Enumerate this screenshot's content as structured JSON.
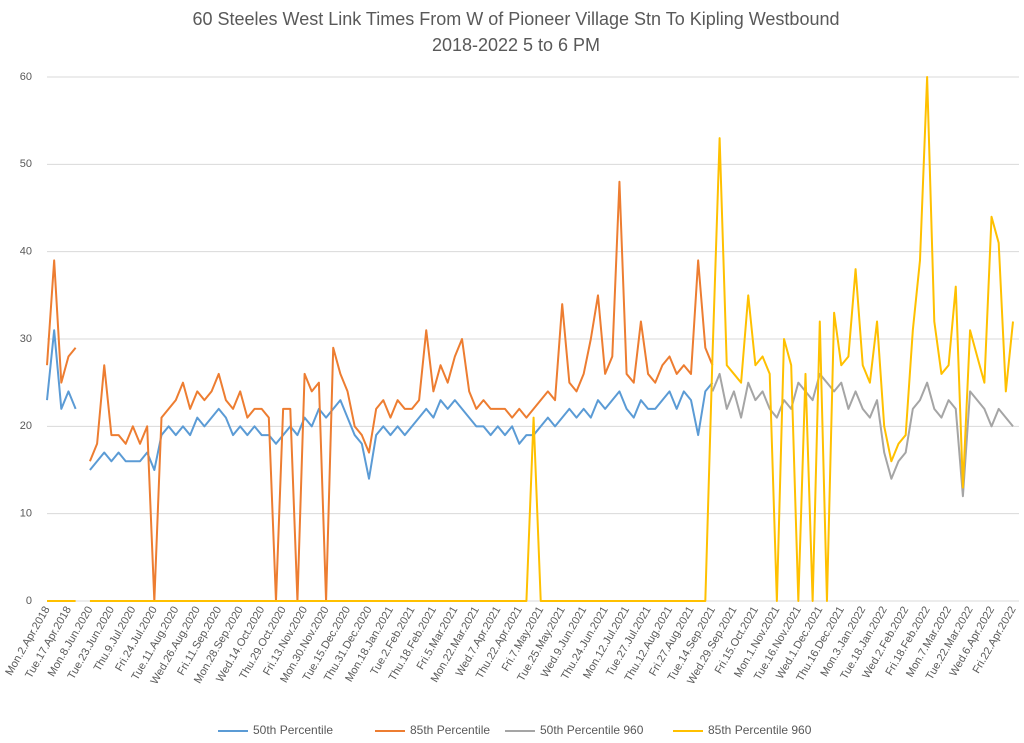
{
  "chart_data": {
    "type": "line",
    "title": "60 Steeles West Link Times From W of Pioneer Village Stn To Kipling Westbound",
    "subtitle": "2018-2022 5 to 6 PM",
    "ylim": [
      0,
      60
    ],
    "yticks": [
      0,
      10,
      20,
      30,
      40,
      50,
      60
    ],
    "grid": true,
    "legend": "bottom",
    "categories": [
      "Mon.2.Apr.2018",
      null,
      null,
      "Tue.17.Apr.2018",
      null,
      null,
      "Mon.8.Jun.2020",
      null,
      null,
      "Tue.23.Jun.2020",
      null,
      null,
      "Thu.9.Jul.2020",
      null,
      null,
      "Fri.24.Jul.2020",
      null,
      null,
      "Tue.11.Aug.2020",
      null,
      null,
      "Wed.26.Aug.2020",
      null,
      null,
      "Fri.11.Sep.2020",
      null,
      null,
      "Mon.28.Sep.2020",
      null,
      null,
      "Wed.14.Oct.2020",
      null,
      null,
      "Thu.29.Oct.2020",
      null,
      null,
      "Fri.13.Nov.2020",
      null,
      null,
      "Mon.30.Nov.2020",
      null,
      null,
      "Tue.15.Dec.2020",
      null,
      null,
      "Thu.31.Dec.2020",
      null,
      null,
      "Mon.18.Jan.2021",
      null,
      null,
      "Tue.2.Feb.2021",
      null,
      null,
      "Thu.18.Feb.2021",
      null,
      null,
      "Fri.5.Mar.2021",
      null,
      null,
      "Mon.22.Mar.2021",
      null,
      null,
      "Wed.7.Apr.2021",
      null,
      null,
      "Thu.22.Apr.2021",
      null,
      null,
      "Fri.7.May.2021",
      null,
      null,
      "Tue.25.May.2021",
      null,
      null,
      "Wed.9.Jun.2021",
      null,
      null,
      "Thu.24.Jun.2021",
      null,
      null,
      "Mon.12.Jul.2021",
      null,
      null,
      "Tue.27.Jul.2021",
      null,
      null,
      "Thu.12.Aug.2021",
      null,
      null,
      "Fri.27.Aug.2021",
      null,
      null,
      "Tue.14.Sep.2021",
      null,
      null,
      "Wed.29.Sep.2021",
      null,
      null,
      "Fri.15.Oct.2021",
      null,
      null,
      "Mon.1.Nov.2021",
      null,
      null,
      "Tue.16.Nov.2021",
      null,
      null,
      "Wed.1.Dec.2021",
      null,
      null,
      "Thu.16.Dec.2021",
      null,
      null,
      "Mon.3.Jan.2022",
      null,
      null,
      "Tue.18.Jan.2022",
      null,
      null,
      "Wed.2.Feb.2022",
      null,
      null,
      "Fri.18.Feb.2022",
      null,
      null,
      "Mon.7.Mar.2022",
      null,
      null,
      "Tue.22.Mar.2022",
      null,
      null,
      "Wed.6.Apr.2022",
      null,
      null,
      "Fri.22.Apr.2022"
    ],
    "series": [
      {
        "name": "50th Percentile",
        "color": "#5b9bd5",
        "values": [
          23,
          31,
          22,
          24,
          22,
          null,
          15,
          16,
          17,
          16,
          17,
          16,
          16,
          16,
          17,
          15,
          19,
          20,
          19,
          20,
          19,
          21,
          20,
          21,
          22,
          21,
          19,
          20,
          19,
          20,
          19,
          19,
          18,
          19,
          20,
          19,
          21,
          20,
          22,
          21,
          22,
          23,
          21,
          19,
          18,
          14,
          19,
          20,
          19,
          20,
          19,
          20,
          21,
          22,
          21,
          23,
          22,
          23,
          22,
          21,
          20,
          20,
          19,
          20,
          19,
          20,
          18,
          19,
          19,
          20,
          21,
          20,
          21,
          22,
          21,
          22,
          21,
          23,
          22,
          23,
          24,
          22,
          21,
          23,
          22,
          22,
          23,
          24,
          22,
          24,
          23,
          19,
          24,
          25,
          null,
          null,
          null,
          null,
          null,
          null,
          null,
          null,
          null,
          null,
          null,
          null,
          null,
          null,
          null,
          null,
          null,
          null,
          null,
          null,
          null,
          null,
          null,
          null,
          null,
          null,
          null,
          null,
          null,
          null,
          null,
          null,
          null,
          null,
          null,
          null,
          null,
          null,
          null,
          null,
          null,
          null
        ]
      },
      {
        "name": "85th Percentile",
        "color": "#ed7d31",
        "values": [
          27,
          39,
          25,
          28,
          29,
          null,
          16,
          18,
          27,
          19,
          19,
          18,
          20,
          18,
          20,
          0,
          21,
          22,
          23,
          25,
          22,
          24,
          23,
          24,
          26,
          23,
          22,
          24,
          21,
          22,
          22,
          21,
          0,
          22,
          22,
          0,
          26,
          24,
          25,
          0,
          29,
          26,
          24,
          20,
          19,
          17,
          22,
          23,
          21,
          23,
          22,
          22,
          23,
          31,
          24,
          27,
          25,
          28,
          30,
          24,
          22,
          23,
          22,
          22,
          22,
          21,
          22,
          21,
          22,
          23,
          24,
          23,
          34,
          25,
          24,
          26,
          30,
          35,
          26,
          28,
          48,
          26,
          25,
          32,
          26,
          25,
          27,
          28,
          26,
          27,
          26,
          39,
          29,
          27,
          null,
          null,
          null,
          null,
          null,
          null,
          null,
          null,
          null,
          null,
          null,
          null,
          null,
          null,
          null,
          null,
          null,
          null,
          null,
          null,
          null,
          null,
          null,
          null,
          null,
          null,
          null,
          null,
          null,
          null,
          null,
          null,
          null,
          null,
          null,
          null,
          null,
          null,
          null,
          null,
          null,
          null
        ]
      },
      {
        "name": "50th Percentile 960",
        "color": "#a5a5a5",
        "values": [
          null,
          null,
          null,
          null,
          null,
          null,
          null,
          null,
          null,
          null,
          null,
          null,
          null,
          null,
          null,
          null,
          null,
          null,
          null,
          null,
          null,
          null,
          null,
          null,
          null,
          null,
          null,
          null,
          null,
          null,
          null,
          null,
          null,
          null,
          null,
          null,
          null,
          null,
          null,
          null,
          null,
          null,
          null,
          null,
          null,
          null,
          null,
          null,
          null,
          null,
          null,
          null,
          null,
          null,
          null,
          null,
          null,
          null,
          null,
          null,
          null,
          null,
          null,
          null,
          null,
          null,
          null,
          null,
          null,
          null,
          null,
          null,
          null,
          null,
          null,
          null,
          null,
          null,
          null,
          null,
          null,
          null,
          null,
          null,
          null,
          null,
          null,
          null,
          null,
          null,
          null,
          null,
          null,
          24,
          26,
          22,
          24,
          21,
          25,
          23,
          24,
          22,
          21,
          23,
          22,
          25,
          24,
          23,
          26,
          25,
          24,
          25,
          22,
          24,
          22,
          21,
          23,
          17,
          14,
          16,
          17,
          22,
          23,
          25,
          22,
          21,
          23,
          22,
          12,
          24,
          23,
          22,
          20,
          22,
          21,
          20
        ]
      },
      {
        "name": "85th Percentile 960",
        "color": "#ffc000",
        "values": [
          0,
          0,
          0,
          0,
          0,
          null,
          0,
          0,
          0,
          0,
          0,
          0,
          0,
          0,
          0,
          0,
          0,
          0,
          0,
          0,
          0,
          0,
          0,
          0,
          0,
          0,
          0,
          0,
          0,
          0,
          0,
          0,
          0,
          0,
          0,
          0,
          0,
          0,
          0,
          0,
          0,
          0,
          0,
          0,
          0,
          0,
          0,
          0,
          0,
          0,
          0,
          0,
          0,
          0,
          0,
          0,
          0,
          0,
          0,
          0,
          0,
          0,
          0,
          0,
          0,
          0,
          0,
          0,
          21,
          0,
          0,
          0,
          0,
          0,
          0,
          0,
          0,
          0,
          0,
          0,
          0,
          0,
          0,
          0,
          0,
          0,
          0,
          0,
          0,
          0,
          0,
          0,
          0,
          28,
          53,
          27,
          26,
          25,
          35,
          27,
          28,
          26,
          0,
          30,
          27,
          0,
          26,
          0,
          32,
          0,
          33,
          27,
          28,
          38,
          27,
          25,
          32,
          20,
          16,
          18,
          19,
          31,
          39,
          60,
          32,
          26,
          27,
          36,
          13,
          31,
          28,
          25,
          44,
          41,
          24,
          32
        ]
      }
    ]
  }
}
